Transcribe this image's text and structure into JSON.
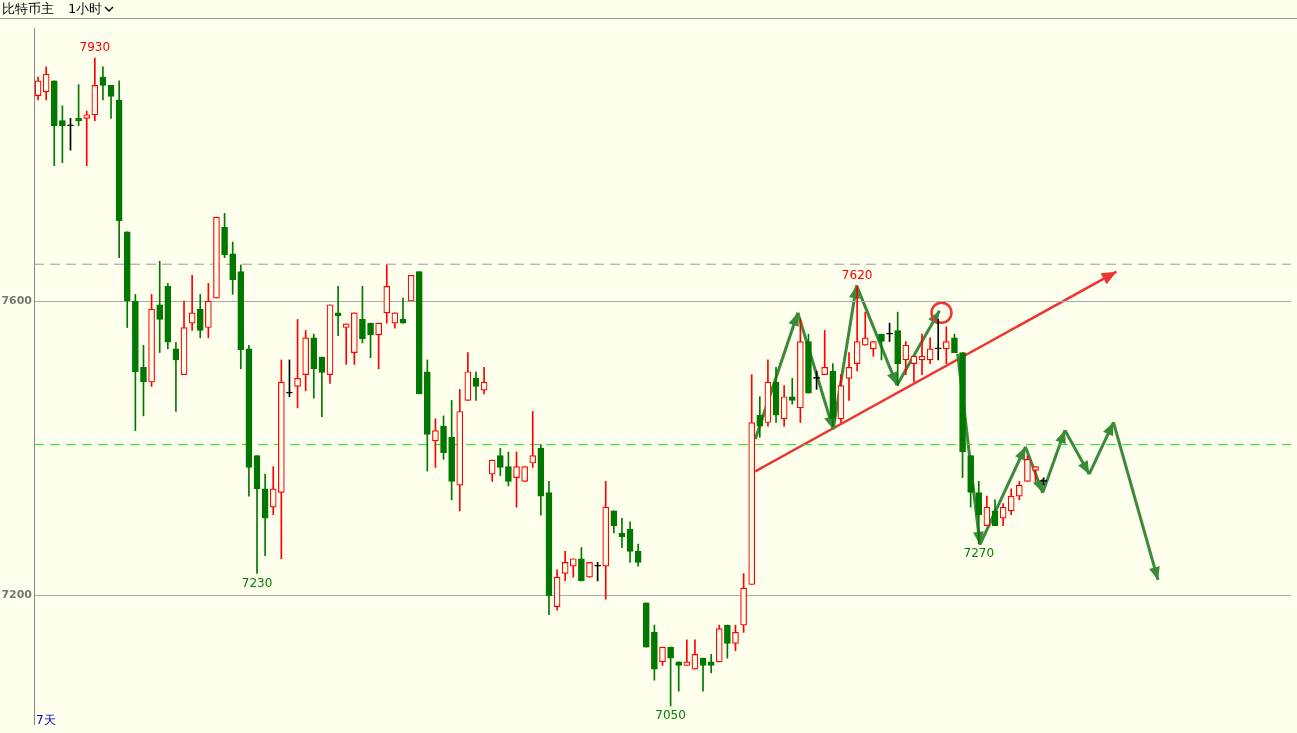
{
  "chart_data": {
    "type": "candlestick",
    "title": "比特币主",
    "subtitle": "1小时",
    "categories": [
      null,
      null,
      null,
      null,
      null,
      null,
      null,
      null,
      null,
      null,
      null,
      null,
      null,
      null,
      null,
      null,
      null,
      null,
      null,
      null,
      null,
      null,
      null,
      null,
      null,
      null,
      null,
      null,
      null,
      null,
      null,
      null,
      null,
      null,
      null,
      null,
      null,
      null,
      null,
      null,
      null,
      null,
      null,
      null,
      null,
      null,
      null,
      null,
      null,
      null,
      null,
      null,
      null,
      null,
      null,
      null,
      null,
      null,
      null,
      null,
      null,
      null,
      null,
      null,
      null,
      null,
      null,
      null,
      null,
      null,
      null,
      null,
      null,
      null,
      null,
      null,
      null,
      null,
      null,
      null,
      null,
      null,
      null,
      null,
      null,
      null,
      null,
      null,
      null,
      null,
      null,
      null,
      null,
      null,
      null,
      null,
      null,
      null,
      null,
      null,
      null,
      null,
      null,
      null,
      null,
      null,
      null,
      null,
      null,
      null,
      null,
      null,
      null,
      null,
      null,
      null,
      null,
      null,
      null,
      null,
      null,
      null,
      null,
      null,
      null,
      null,
      null,
      null,
      null,
      null,
      null,
      null,
      null,
      null,
      null,
      null,
      null,
      null,
      null,
      null,
      null,
      null,
      null,
      null,
      null,
      null,
      null,
      null,
      null,
      null,
      null,
      null,
      null,
      null,
      null
    ],
    "ohlc": [
      [
        7879,
        7904,
        7873,
        7899
      ],
      [
        7884,
        7918,
        7873,
        7908
      ],
      [
        7899,
        7899,
        7784,
        7838
      ],
      [
        7845,
        7865,
        7788,
        7838
      ],
      [
        7838,
        7848,
        7805,
        7838
      ],
      [
        7848,
        7894,
        7838,
        7845
      ],
      [
        7848,
        7858,
        7784,
        7853
      ],
      [
        7853,
        7930,
        7845,
        7893
      ],
      [
        7904,
        7918,
        7873,
        7893
      ],
      [
        7893,
        7893,
        7848,
        7878
      ],
      [
        7873,
        7899,
        7659,
        7709
      ],
      [
        7694,
        7694,
        7564,
        7600
      ],
      [
        7600,
        7609,
        7424,
        7504
      ],
      [
        7510,
        7540,
        7444,
        7490
      ],
      [
        7490,
        7609,
        7484,
        7589
      ],
      [
        7595,
        7654,
        7530,
        7575
      ],
      [
        7620,
        7624,
        7535,
        7544
      ],
      [
        7535,
        7544,
        7450,
        7520
      ],
      [
        7500,
        7600,
        7500,
        7564
      ],
      [
        7570,
        7635,
        7560,
        7584
      ],
      [
        7589,
        7609,
        7550,
        7560
      ],
      [
        7564,
        7624,
        7550,
        7600
      ],
      [
        7604,
        7714,
        7604,
        7714
      ],
      [
        7700,
        7719,
        7659,
        7663
      ],
      [
        7664,
        7680,
        7609,
        7629
      ],
      [
        7640,
        7649,
        7508,
        7534
      ],
      [
        7535,
        7540,
        7335,
        7374
      ],
      [
        7390,
        7390,
        7230,
        7345
      ],
      [
        7345,
        7365,
        7254,
        7305
      ],
      [
        7320,
        7375,
        7310,
        7345
      ],
      [
        7340,
        7520,
        7250,
        7490
      ],
      [
        7475,
        7520,
        7470,
        7475
      ],
      [
        7484,
        7575,
        7455,
        7495
      ],
      [
        7500,
        7560,
        7478,
        7550
      ],
      [
        7550,
        7555,
        7468,
        7508
      ],
      [
        7524,
        7524,
        7443,
        7503
      ],
      [
        7500,
        7595,
        7488,
        7595
      ],
      [
        7584,
        7620,
        7553,
        7580
      ],
      [
        7564,
        7569,
        7514,
        7569
      ],
      [
        7530,
        7584,
        7514,
        7584
      ],
      [
        7575,
        7620,
        7543,
        7549
      ],
      [
        7570,
        7570,
        7523,
        7554
      ],
      [
        7554,
        7570,
        7508,
        7570
      ],
      [
        7584,
        7649,
        7570,
        7620
      ],
      [
        7570,
        7584,
        7563,
        7584
      ],
      [
        7575,
        7604,
        7570,
        7570
      ],
      [
        7600,
        7635,
        7600,
        7635
      ],
      [
        7640,
        7640,
        7474,
        7474
      ],
      [
        7504,
        7520,
        7369,
        7419
      ],
      [
        7410,
        7440,
        7374,
        7424
      ],
      [
        7430,
        7444,
        7385,
        7394
      ],
      [
        7415,
        7465,
        7330,
        7355
      ],
      [
        7350,
        7480,
        7315,
        7450
      ],
      [
        7465,
        7530,
        7465,
        7504
      ],
      [
        7495,
        7504,
        7465,
        7484
      ],
      [
        7479,
        7510,
        7474,
        7490
      ],
      [
        7365,
        7384,
        7355,
        7384
      ],
      [
        7390,
        7400,
        7363,
        7374
      ],
      [
        7375,
        7395,
        7349,
        7355
      ],
      [
        7360,
        7395,
        7320,
        7375
      ],
      [
        7355,
        7375,
        7355,
        7375
      ],
      [
        7380,
        7450,
        7374,
        7390
      ],
      [
        7400,
        7405,
        7309,
        7335
      ],
      [
        7340,
        7355,
        7174,
        7200
      ],
      [
        7185,
        7235,
        7180,
        7225
      ],
      [
        7230,
        7260,
        7220,
        7245
      ],
      [
        7240,
        7250,
        7225,
        7250
      ],
      [
        7250,
        7265,
        7220,
        7220
      ],
      [
        7225,
        7245,
        7225,
        7245
      ],
      [
        7240,
        7245,
        7220,
        7240
      ],
      [
        7240,
        7355,
        7195,
        7320
      ],
      [
        7315,
        7315,
        7285,
        7295
      ],
      [
        7285,
        7305,
        7265,
        7280
      ],
      [
        7290,
        7300,
        7245,
        7260
      ],
      [
        7260,
        7270,
        7240,
        7245
      ],
      [
        7190,
        7190,
        7130,
        7130
      ],
      [
        7150,
        7160,
        7085,
        7100
      ],
      [
        7110,
        7130,
        7105,
        7130
      ],
      [
        7130,
        7130,
        7050,
        7115
      ],
      [
        7110,
        7110,
        7070,
        7105
      ],
      [
        7105,
        7140,
        7105,
        7110
      ],
      [
        7100,
        7140,
        7100,
        7120
      ],
      [
        7115,
        7115,
        7070,
        7105
      ],
      [
        7110,
        7120,
        7095,
        7105
      ],
      [
        7110,
        7160,
        7110,
        7155
      ],
      [
        7160,
        7160,
        7115,
        7135
      ],
      [
        7135,
        7160,
        7125,
        7150
      ],
      [
        7160,
        7230,
        7150,
        7210
      ],
      [
        7215,
        7500,
        7215,
        7435
      ],
      [
        7445,
        7470,
        7415,
        7430
      ],
      [
        7435,
        7520,
        7430,
        7490
      ],
      [
        7490,
        7510,
        7435,
        7445
      ],
      [
        7440,
        7485,
        7430,
        7470
      ],
      [
        7470,
        7495,
        7460,
        7465
      ],
      [
        7455,
        7575,
        7435,
        7545
      ],
      [
        7545,
        7555,
        7475,
        7475
      ],
      [
        7495,
        7505,
        7480,
        7495
      ],
      [
        7500,
        7560,
        7500,
        7510
      ],
      [
        7505,
        7515,
        7430,
        7440
      ],
      [
        7440,
        7500,
        7435,
        7485
      ],
      [
        7495,
        7530,
        7465,
        7510
      ],
      [
        7515,
        7620,
        7505,
        7545
      ],
      [
        7540,
        7585,
        7540,
        7550
      ],
      [
        7535,
        7545,
        7525,
        7545
      ],
      [
        7555,
        7555,
        7520,
        7545
      ],
      [
        7555,
        7570,
        7545,
        7555
      ],
      [
        7560,
        7585,
        7485,
        7515
      ],
      [
        7520,
        7545,
        7500,
        7540
      ],
      [
        7515,
        7525,
        7490,
        7525
      ],
      [
        7520,
        7555,
        7500,
        7525
      ],
      [
        7520,
        7550,
        7515,
        7535
      ],
      [
        7535,
        7575,
        7520,
        7535
      ],
      [
        7535,
        7565,
        7515,
        7545
      ],
      [
        7550,
        7555,
        7530,
        7530
      ],
      [
        7530,
        7530,
        7360,
        7395
      ],
      [
        7390,
        7390,
        7320,
        7340
      ],
      [
        7340,
        7355,
        7270,
        7310
      ],
      [
        7295,
        7335,
        7295,
        7320
      ],
      [
        7315,
        7330,
        7295,
        7295
      ],
      [
        7305,
        7325,
        7295,
        7320
      ],
      [
        7315,
        7345,
        7310,
        7335
      ],
      [
        7335,
        7355,
        7330,
        7350
      ],
      [
        7355,
        7390,
        7355,
        7385
      ],
      [
        7370,
        7375,
        7355,
        7375
      ],
      [
        7355,
        7360,
        7350,
        7355
      ],
      null,
      null,
      null,
      null,
      null,
      null,
      null,
      null,
      null,
      null,
      null,
      null,
      null,
      null,
      null,
      null,
      null,
      null,
      null,
      null,
      null,
      null,
      null,
      null,
      null,
      null,
      null,
      null,
      null,
      null
    ],
    "colors": [
      "#ff0000",
      "#ff0000",
      "#007800",
      "#007800",
      "#000000",
      "#007800",
      "#ff0000",
      "#ff0000",
      "#007800",
      "#007800",
      "#007800",
      "#007800",
      "#007800",
      "#007800",
      "#ff0000",
      "#007800",
      "#007800",
      "#007800",
      "#ff0000",
      "#ff0000",
      "#007800",
      "#ff0000",
      "#ff0000",
      "#007800",
      "#007800",
      "#007800",
      "#007800",
      "#007800",
      "#007800",
      "#ff0000",
      "#ff0000",
      "#000000",
      "#ff0000",
      "#ff0000",
      "#007800",
      "#007800",
      "#ff0000",
      "#007800",
      "#ff0000",
      "#ff0000",
      "#007800",
      "#007800",
      "#ff0000",
      "#ff0000",
      "#ff0000",
      "#007800",
      "#ff0000",
      "#007800",
      "#007800",
      "#ff0000",
      "#007800",
      "#007800",
      "#ff0000",
      "#ff0000",
      "#007800",
      "#ff0000",
      "#ff0000",
      "#007800",
      "#007800",
      "#ff0000",
      "#ff0000",
      "#ff0000",
      "#007800",
      "#007800",
      "#ff0000",
      "#ff0000",
      "#ff0000",
      "#007800",
      "#ff0000",
      "#000000",
      "#ff0000",
      "#007800",
      "#007800",
      "#007800",
      "#007800",
      "#007800",
      "#007800",
      "#ff0000",
      "#007800",
      "#007800",
      "#ff0000",
      "#ff0000",
      "#007800",
      "#007800",
      "#ff0000",
      "#007800",
      "#ff0000",
      "#ff0000",
      "#ff0000",
      "#007800",
      "#ff0000",
      "#007800",
      "#ff0000",
      "#007800",
      "#ff0000",
      "#007800",
      "#000000",
      "#ff0000",
      "#007800",
      "#ff0000",
      "#ff0000",
      "#ff0000",
      "#ff0000",
      "#ff0000",
      "#007800",
      "#000000",
      "#007800",
      "#ff0000",
      "#ff0000",
      "#ff0000",
      "#ff0000",
      "#000000",
      "#ff0000",
      "#007800",
      "#007800",
      "#007800",
      "#007800",
      "#ff0000",
      "#007800",
      "#ff0000",
      "#ff0000",
      "#ff0000",
      "#ff0000",
      "#ff0000",
      "#000000",
      null,
      null,
      null,
      null,
      null,
      null,
      null,
      null,
      null,
      null,
      null,
      null,
      null,
      null,
      null,
      null,
      null,
      null,
      null,
      null,
      null,
      null,
      null,
      null,
      null,
      null,
      null,
      null,
      null,
      null
    ],
    "ylim": [
      7025,
      7970
    ],
    "yticks": [
      7200,
      7600
    ],
    "grid": "y",
    "tick_labels": "y",
    "legend": false,
    "ref_lines": [
      {
        "axis": "y",
        "value": 7650,
        "color": "#999999",
        "line_style": "dashed"
      },
      {
        "axis": "y",
        "value": 7405,
        "color": "#22dd22",
        "line_style": "dashed"
      }
    ],
    "annotations": [
      {
        "text": "7930",
        "y": 7930
      },
      {
        "text": "7620",
        "y": 7620
      },
      {
        "text": "7230",
        "y": 7230
      },
      {
        "text": "7050",
        "y": 7050
      },
      {
        "text": "7270",
        "y": 7270
      },
      "7天"
    ]
  }
}
